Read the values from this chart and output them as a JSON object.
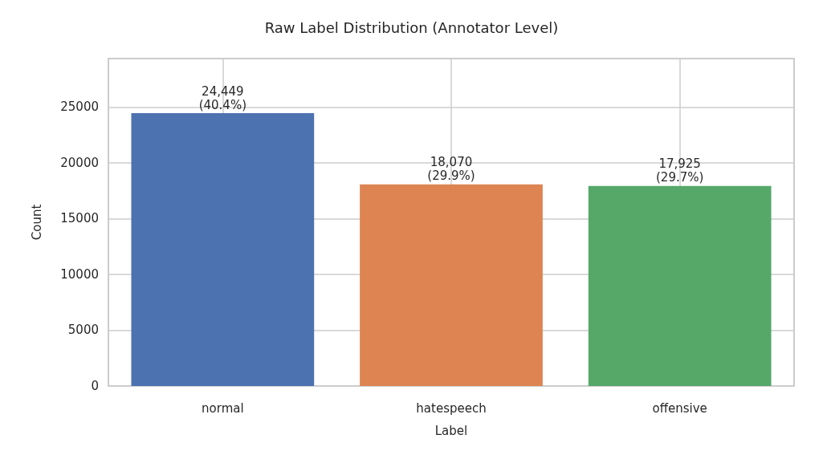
{
  "chart_data": {
    "type": "bar",
    "title": "Raw Label Distribution (Annotator Level)",
    "xlabel": "Label",
    "ylabel": "Count",
    "categories": [
      "normal",
      "hatespeech",
      "offensive"
    ],
    "values": [
      24449,
      18070,
      17925
    ],
    "colors": [
      "#4c72b0",
      "#dd8452",
      "#55a868"
    ],
    "value_labels": [
      "24,449\n(40.4%)",
      "18,070\n(29.9%)",
      "17,925\n(29.7%)"
    ],
    "ylim": [
      0,
      29340
    ],
    "yticks": [
      0,
      5000,
      10000,
      15000,
      20000,
      25000
    ],
    "grid": true
  }
}
